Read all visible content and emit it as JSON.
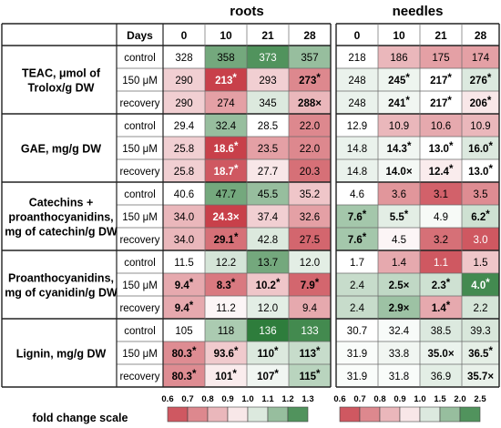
{
  "chart_data": {
    "type": "heatmap",
    "groups": [
      "roots",
      "needles"
    ],
    "header_label": "Days",
    "days": [
      "0",
      "10",
      "21",
      "28"
    ],
    "metrics": [
      {
        "label_lines": [
          "TEAC, μmol of",
          "Trolox/g DW"
        ],
        "rows": [
          {
            "condition": "control",
            "roots": [
              {
                "v": "328"
              },
              {
                "v": "358"
              },
              {
                "v": "373"
              },
              {
                "v": "357"
              }
            ],
            "needles": [
              {
                "v": "218"
              },
              {
                "v": "186"
              },
              {
                "v": "175"
              },
              {
                "v": "174"
              }
            ]
          },
          {
            "condition": "150 μM",
            "roots": [
              {
                "v": "290"
              },
              {
                "v": "213",
                "m": "*",
                "b": true
              },
              {
                "v": "293"
              },
              {
                "v": "273",
                "m": "*",
                "b": true
              }
            ],
            "needles": [
              {
                "v": "248"
              },
              {
                "v": "245",
                "m": "*",
                "b": true
              },
              {
                "v": "217",
                "m": "*",
                "b": true
              },
              {
                "v": "276",
                "m": "*",
                "b": true
              }
            ]
          },
          {
            "condition": "recovery",
            "roots": [
              {
                "v": "290"
              },
              {
                "v": "274"
              },
              {
                "v": "345"
              },
              {
                "v": "288",
                "m": "×",
                "b": true
              }
            ],
            "needles": [
              {
                "v": "248"
              },
              {
                "v": "241",
                "m": "*",
                "b": true
              },
              {
                "v": "217",
                "m": "*",
                "b": true
              },
              {
                "v": "206",
                "m": "*",
                "b": true
              }
            ]
          }
        ]
      },
      {
        "label_lines": [
          "GAE, mg/g DW"
        ],
        "rows": [
          {
            "condition": "control",
            "roots": [
              {
                "v": "29.4"
              },
              {
                "v": "32.4"
              },
              {
                "v": "28.5"
              },
              {
                "v": "22.0"
              }
            ],
            "needles": [
              {
                "v": "12.9"
              },
              {
                "v": "10.9"
              },
              {
                "v": "10.6"
              },
              {
                "v": "10.9"
              }
            ]
          },
          {
            "condition": "150 μM",
            "roots": [
              {
                "v": "25.8"
              },
              {
                "v": "18.6",
                "m": "*",
                "b": true
              },
              {
                "v": "23.5"
              },
              {
                "v": "22.0"
              }
            ],
            "needles": [
              {
                "v": "14.8"
              },
              {
                "v": "14.3",
                "m": "*",
                "b": true
              },
              {
                "v": "13.0",
                "m": "*",
                "b": true
              },
              {
                "v": "16.0",
                "m": "*",
                "b": true
              }
            ]
          },
          {
            "condition": "recovery",
            "roots": [
              {
                "v": "25.8"
              },
              {
                "v": "18.7",
                "m": "*",
                "b": true
              },
              {
                "v": "27.7"
              },
              {
                "v": "20.3"
              }
            ],
            "needles": [
              {
                "v": "14.8"
              },
              {
                "v": "14.0",
                "m": "×",
                "b": true
              },
              {
                "v": "12.4",
                "m": "*",
                "b": true
              },
              {
                "v": "13.0",
                "m": "*",
                "b": true
              }
            ]
          }
        ]
      },
      {
        "label_lines": [
          "Catechins +",
          "proanthocyanidins,",
          "mg of catechin/g DW"
        ],
        "rows": [
          {
            "condition": "control",
            "roots": [
              {
                "v": "40.6"
              },
              {
                "v": "47.7"
              },
              {
                "v": "45.5"
              },
              {
                "v": "35.2"
              }
            ],
            "needles": [
              {
                "v": "4.6"
              },
              {
                "v": "3.6"
              },
              {
                "v": "3.1"
              },
              {
                "v": "3.5"
              }
            ]
          },
          {
            "condition": "150 μM",
            "roots": [
              {
                "v": "34.0"
              },
              {
                "v": "24.3",
                "m": "×",
                "b": true
              },
              {
                "v": "37.4"
              },
              {
                "v": "32.6"
              }
            ],
            "needles": [
              {
                "v": "7.6",
                "m": "*",
                "b": true
              },
              {
                "v": "5.5",
                "m": "*",
                "b": true
              },
              {
                "v": "4.9"
              },
              {
                "v": "6.2",
                "m": "*",
                "b": true
              }
            ]
          },
          {
            "condition": "recovery",
            "roots": [
              {
                "v": "34.0"
              },
              {
                "v": "29.1",
                "m": "*",
                "b": true
              },
              {
                "v": "42.8"
              },
              {
                "v": "27.5"
              }
            ],
            "needles": [
              {
                "v": "7.6",
                "m": "*",
                "b": true
              },
              {
                "v": "4.5"
              },
              {
                "v": "3.2"
              },
              {
                "v": "3.0"
              }
            ]
          }
        ]
      },
      {
        "label_lines": [
          "Proanthocyanidins,",
          "mg of cyanidin/g DW"
        ],
        "rows": [
          {
            "condition": "control",
            "roots": [
              {
                "v": "11.5"
              },
              {
                "v": "12.2"
              },
              {
                "v": "13.7"
              },
              {
                "v": "12.0"
              }
            ],
            "needles": [
              {
                "v": "1.7"
              },
              {
                "v": "1.4"
              },
              {
                "v": "1.1"
              },
              {
                "v": "1.5"
              }
            ]
          },
          {
            "condition": "150 μM",
            "roots": [
              {
                "v": "9.4",
                "m": "*",
                "b": true
              },
              {
                "v": "8.3",
                "m": "*",
                "b": true
              },
              {
                "v": "10.2",
                "m": "*",
                "b": true
              },
              {
                "v": "7.9",
                "m": "*",
                "b": true
              }
            ],
            "needles": [
              {
                "v": "2.4"
              },
              {
                "v": "2.5",
                "m": "×",
                "b": true
              },
              {
                "v": "2.3",
                "m": "*",
                "b": true
              },
              {
                "v": "4.0",
                "m": "*",
                "b": true
              }
            ]
          },
          {
            "condition": "recovery",
            "roots": [
              {
                "v": "9.4",
                "m": "*",
                "b": true
              },
              {
                "v": "11.2"
              },
              {
                "v": "12.0"
              },
              {
                "v": "9.4"
              }
            ],
            "needles": [
              {
                "v": "2.4"
              },
              {
                "v": "2.9",
                "m": "×",
                "b": true
              },
              {
                "v": "1.4",
                "m": "*",
                "b": true
              },
              {
                "v": "2.2"
              }
            ]
          }
        ]
      },
      {
        "label_lines": [
          "Lignin, mg/g DW"
        ],
        "rows": [
          {
            "condition": "control",
            "roots": [
              {
                "v": "105"
              },
              {
                "v": "118"
              },
              {
                "v": "136"
              },
              {
                "v": "133"
              }
            ],
            "needles": [
              {
                "v": "30.7"
              },
              {
                "v": "32.4"
              },
              {
                "v": "38.5"
              },
              {
                "v": "39.3"
              }
            ]
          },
          {
            "condition": "150 μM",
            "roots": [
              {
                "v": "80.3",
                "m": "*",
                "b": true
              },
              {
                "v": "93.6",
                "m": "*",
                "b": true
              },
              {
                "v": "110",
                "m": "*",
                "b": true
              },
              {
                "v": "113",
                "m": "*",
                "b": true
              }
            ],
            "needles": [
              {
                "v": "31.9"
              },
              {
                "v": "33.8"
              },
              {
                "v": "35.0",
                "m": "×",
                "b": true
              },
              {
                "v": "36.5",
                "m": "*",
                "b": true
              }
            ]
          },
          {
            "condition": "recovery",
            "roots": [
              {
                "v": "80.3",
                "m": "*",
                "b": true
              },
              {
                "v": "101",
                "m": "*",
                "b": true
              },
              {
                "v": "107",
                "m": "*",
                "b": true
              },
              {
                "v": "115",
                "m": "*",
                "b": true
              }
            ],
            "needles": [
              {
                "v": "31.9"
              },
              {
                "v": "31.8"
              },
              {
                "v": "36.9"
              },
              {
                "v": "35.7",
                "m": "×",
                "b": true
              }
            ]
          }
        ]
      }
    ],
    "cell_fold_change": {
      "roots": [
        [
          [
            1.0,
            1.2,
            1.25,
            1.15
          ],
          [
            0.9,
            0.6,
            0.9,
            0.75
          ],
          [
            0.9,
            0.8,
            1.05,
            0.85
          ]
        ],
        [
          [
            1.0,
            1.15,
            1.0,
            0.75
          ],
          [
            0.9,
            0.6,
            0.8,
            0.75
          ],
          [
            0.9,
            0.65,
            0.95,
            0.7
          ]
        ],
        [
          [
            1.0,
            1.2,
            1.15,
            0.88
          ],
          [
            0.85,
            0.6,
            0.9,
            0.8
          ],
          [
            0.85,
            0.7,
            1.05,
            0.68
          ]
        ],
        [
          [
            1.0,
            1.06,
            1.2,
            1.04
          ],
          [
            0.82,
            0.72,
            0.88,
            0.68
          ],
          [
            0.82,
            0.98,
            1.04,
            0.82
          ]
        ],
        [
          [
            1.0,
            1.12,
            1.3,
            1.27
          ],
          [
            0.76,
            0.89,
            1.05,
            1.08
          ],
          [
            0.76,
            0.96,
            1.02,
            1.1
          ]
        ]
      ],
      "needles": [
        [
          [
            1.0,
            0.85,
            0.8,
            0.8
          ],
          [
            1.15,
            1.12,
            1.0,
            1.25
          ],
          [
            1.15,
            1.1,
            1.0,
            0.95
          ]
        ],
        [
          [
            1.0,
            0.85,
            0.82,
            0.85
          ],
          [
            1.15,
            1.1,
            1.0,
            1.25
          ],
          [
            1.15,
            1.08,
            0.96,
            1.0
          ]
        ],
        [
          [
            1.0,
            0.78,
            0.67,
            0.76
          ],
          [
            1.65,
            1.2,
            1.06,
            1.35
          ],
          [
            1.65,
            0.98,
            0.7,
            0.65
          ]
        ],
        [
          [
            1.0,
            0.82,
            0.65,
            0.88
          ],
          [
            1.4,
            1.45,
            1.35,
            2.35
          ],
          [
            1.4,
            1.7,
            0.82,
            1.3
          ]
        ],
        [
          [
            1.0,
            1.05,
            1.25,
            1.28
          ],
          [
            1.04,
            1.1,
            1.14,
            1.19
          ],
          [
            1.04,
            1.04,
            1.2,
            1.16
          ]
        ]
      ]
    },
    "legend": {
      "title": "fold change scale",
      "roots_ticks": [
        "0.6",
        "0.7",
        "0.8",
        "0.9",
        "1.0",
        "1.1",
        "1.2",
        "1.3"
      ],
      "needles_ticks": [
        "0.6",
        "0.7",
        "0.8",
        "0.9",
        "1.0",
        "1.5",
        "2.0",
        "2.5"
      ]
    },
    "colors": {
      "low": "#c8404a",
      "mid": "#ffffff",
      "high": "#2e7d3c"
    }
  }
}
